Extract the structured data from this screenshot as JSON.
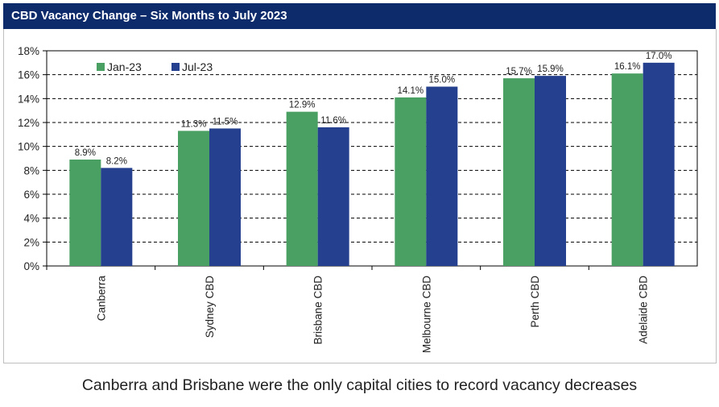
{
  "chart_data": {
    "type": "bar",
    "title": "CBD Vacancy Change – Six Months to July 2023",
    "categories": [
      "Canberra",
      "Sydney CBD",
      "Brisbane CBD",
      "Melbourne CBD",
      "Perth CBD",
      "Adelaide CBD"
    ],
    "series": [
      {
        "name": "Jan-23",
        "color": "#4aa063",
        "values": [
          8.9,
          11.3,
          12.9,
          14.1,
          15.7,
          16.1
        ],
        "labels": [
          "8.9%",
          "11.3%",
          "12.9%",
          "14.1%",
          "15.7%",
          "16.1%"
        ]
      },
      {
        "name": "Jul-23",
        "color": "#24408e",
        "values": [
          8.2,
          11.5,
          11.6,
          15.0,
          15.9,
          17.0
        ],
        "labels": [
          "8.2%",
          "11.5%",
          "11.6%",
          "15.0%",
          "15.9%",
          "17.0%"
        ]
      }
    ],
    "yticks": [
      "0%",
      "2%",
      "4%",
      "6%",
      "8%",
      "10%",
      "12%",
      "14%",
      "16%",
      "18%"
    ],
    "ylim": [
      0,
      18
    ],
    "grid": "dashed",
    "legend": "top-left",
    "xlabel": "",
    "ylabel": ""
  },
  "caption": "Canberra and Brisbane were the only capital cities to record vacancy decreases"
}
